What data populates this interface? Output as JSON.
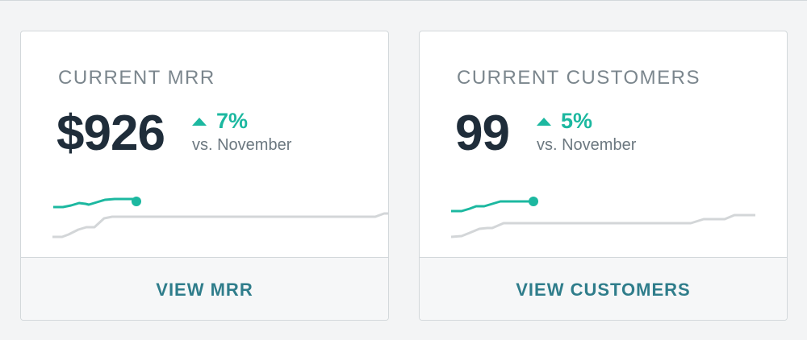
{
  "colors": {
    "accent": "#1cb8a0",
    "baseline": "#d3d6d8",
    "link": "#2f7d8b",
    "value": "#1f2d3a"
  },
  "cards": [
    {
      "title": "CURRENT MRR",
      "value": "$926",
      "change": "7%",
      "change_direction": "up",
      "comparison": "vs. November",
      "footer_label": "VIEW MRR"
    },
    {
      "title": "CURRENT CUSTOMERS",
      "value": "99",
      "change": "5%",
      "change_direction": "up",
      "comparison": "vs. November",
      "footer_label": "VIEW CUSTOMERS"
    }
  ]
}
